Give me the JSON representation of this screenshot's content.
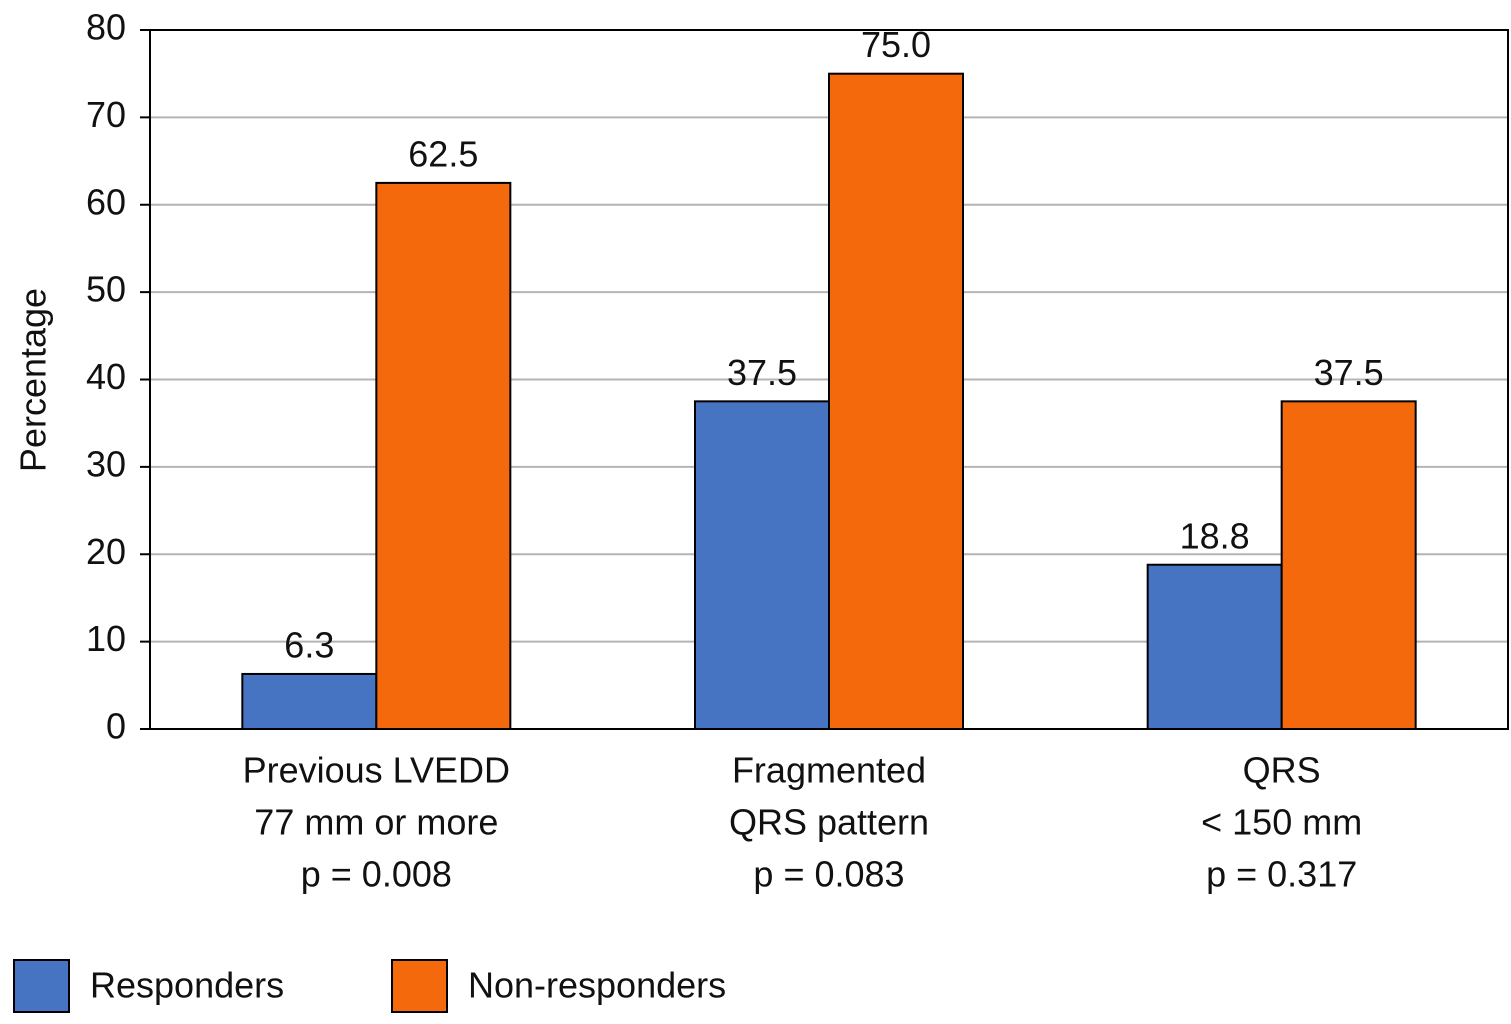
{
  "chart_data": {
    "type": "bar",
    "y_label": "Percentage",
    "categories": [
      [
        "Previous LVEDD",
        "77 mm or more",
        "p = 0.008"
      ],
      [
        "Fragmented",
        "QRS pattern",
        "p = 0.083"
      ],
      [
        "QRS",
        "< 150 mm",
        "p = 0.317"
      ]
    ],
    "series": [
      {
        "name": "Responders",
        "color": "#4674c3",
        "values": [
          6.3,
          37.5,
          18.8
        ]
      },
      {
        "name": "Non-responders",
        "color": "#f5690d",
        "values": [
          62.5,
          75,
          37.5
        ],
        "value_labels": [
          "62.5",
          "75.0",
          "37.5"
        ]
      }
    ],
    "ylim": [
      0,
      80
    ],
    "yticks": [
      0,
      10,
      20,
      30,
      40,
      50,
      60,
      70,
      80
    ],
    "grid": true
  }
}
